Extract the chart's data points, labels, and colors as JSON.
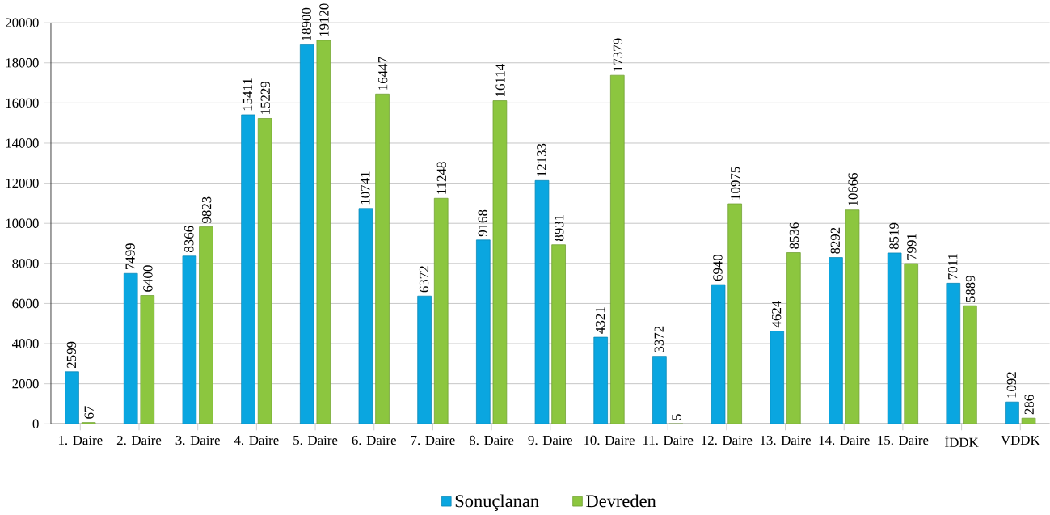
{
  "chart_data": {
    "type": "bar",
    "categories": [
      "1. Daire",
      "2. Daire",
      "3. Daire",
      "4. Daire",
      "5. Daire",
      "6. Daire",
      "7. Daire",
      "8. Daire",
      "9. Daire",
      "10. Daire",
      "11. Daire",
      "12. Daire",
      "13. Daire",
      "14. Daire",
      "15. Daire",
      "İDDK",
      "VDDK"
    ],
    "series": [
      {
        "name": "Sonuçlanan",
        "color": "#0aa6e0",
        "values": [
          2599,
          7499,
          8366,
          15411,
          18900,
          10741,
          6372,
          9168,
          12133,
          4321,
          3372,
          6940,
          4624,
          8292,
          8519,
          7011,
          1092
        ]
      },
      {
        "name": "Devreden",
        "color": "#8cc63f",
        "values": [
          67,
          6400,
          9823,
          15229,
          19120,
          16447,
          11248,
          16114,
          8931,
          17379,
          5,
          10975,
          8536,
          10666,
          7991,
          5889,
          286
        ]
      }
    ],
    "ylim": [
      0,
      20000
    ],
    "yticks": [
      0,
      2000,
      4000,
      6000,
      8000,
      10000,
      12000,
      14000,
      16000,
      18000,
      20000
    ],
    "grid": "y",
    "legend": "bottom",
    "data_labels": true
  }
}
